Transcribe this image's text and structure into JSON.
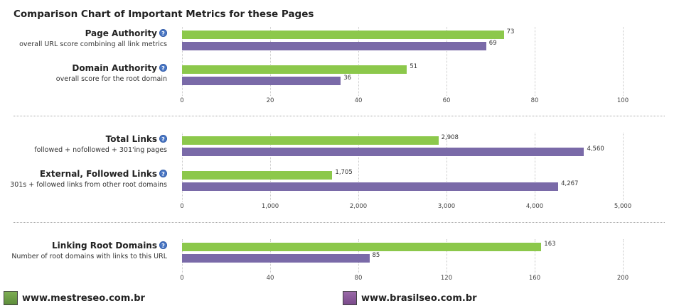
{
  "title": "Comparison Chart of Important Metrics for these Pages",
  "help_glyph": "?",
  "colors": {
    "site1": "#8cc84b",
    "site2": "#7a6aa8"
  },
  "legend": [
    {
      "label": "www.mestreseo.com.br",
      "color": "#6b9a47"
    },
    {
      "label": "www.brasilseo.com.br",
      "color": "#8a5a9a"
    }
  ],
  "chart_data": [
    {
      "type": "bar",
      "orientation": "horizontal",
      "xlim": [
        0,
        100
      ],
      "ticks": [
        "0",
        "20",
        "40",
        "60",
        "80",
        "100"
      ],
      "metrics": [
        {
          "name": "Page Authority",
          "description": "overall URL score combining all link metrics",
          "values": [
            73,
            69
          ],
          "labels": [
            "73",
            "69"
          ]
        },
        {
          "name": "Domain Authority",
          "description": "overall score for the root domain",
          "values": [
            51,
            36
          ],
          "labels": [
            "51",
            "36"
          ]
        }
      ]
    },
    {
      "type": "bar",
      "orientation": "horizontal",
      "xlim": [
        0,
        5000
      ],
      "ticks": [
        "0",
        "1,000",
        "2,000",
        "3,000",
        "4,000",
        "5,000"
      ],
      "metrics": [
        {
          "name": "Total Links",
          "description": "followed + nofollowed + 301'ing pages",
          "values": [
            2908,
            4560
          ],
          "labels": [
            "2,908",
            "4,560"
          ]
        },
        {
          "name": "External, Followed Links",
          "description": "301s + followed links from other root domains",
          "values": [
            1705,
            4267
          ],
          "labels": [
            "1,705",
            "4,267"
          ]
        }
      ]
    },
    {
      "type": "bar",
      "orientation": "horizontal",
      "xlim": [
        0,
        200
      ],
      "ticks": [
        "0",
        "40",
        "80",
        "120",
        "160",
        "200"
      ],
      "metrics": [
        {
          "name": "Linking Root Domains",
          "description": "Number of root domains with links to this URL",
          "values": [
            163,
            85
          ],
          "labels": [
            "163",
            "85"
          ]
        }
      ]
    }
  ]
}
